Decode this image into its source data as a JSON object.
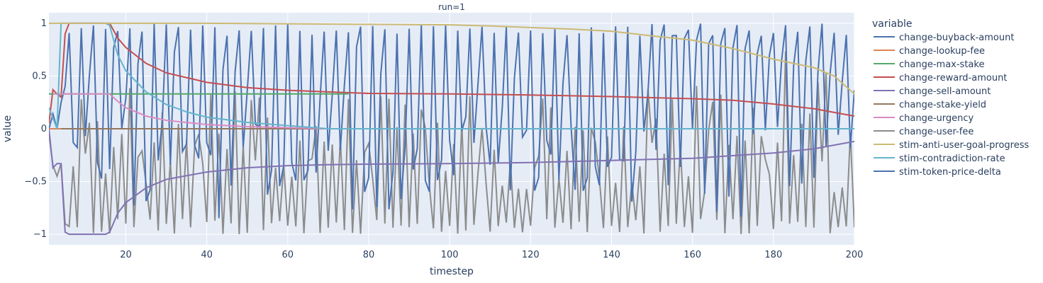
{
  "chart_data": {
    "type": "line",
    "title": "run=1",
    "xlabel": "timestep",
    "ylabel": "value",
    "xlim": [
      1,
      200
    ],
    "ylim": [
      -1.1,
      1.1
    ],
    "x_ticks": [
      20,
      40,
      60,
      80,
      100,
      120,
      140,
      160,
      180,
      200
    ],
    "y_ticks": [
      1,
      0.5,
      0,
      -0.5,
      -1
    ],
    "y_tick_labels": [
      "1",
      "0.5",
      "0",
      "−0.5",
      "−1"
    ],
    "grid": true,
    "legend_title": "variable",
    "legend_position": "right",
    "series": [
      {
        "name": "change-buyback-amount",
        "color": "#4c72b0",
        "points": [
          [
            1,
            0
          ],
          [
            2,
            1
          ],
          [
            3,
            0
          ],
          [
            4,
            0
          ],
          [
            5,
            1
          ],
          [
            6,
            1
          ],
          [
            10,
            1
          ],
          [
            15,
            1
          ],
          [
            20,
            1
          ],
          [
            30,
            1
          ],
          [
            40,
            1
          ],
          [
            50,
            1
          ],
          [
            60,
            1
          ],
          [
            80,
            1
          ],
          [
            100,
            1
          ],
          [
            120,
            1
          ],
          [
            140,
            1
          ],
          [
            160,
            1
          ],
          [
            180,
            1
          ],
          [
            200,
            1
          ]
        ],
        "hidden": true
      },
      {
        "name": "change-lookup-fee",
        "color": "#dd8452",
        "points": [
          [
            1,
            0
          ],
          [
            200,
            0
          ]
        ]
      },
      {
        "name": "change-max-stake",
        "color": "#55a868",
        "points": [
          [
            1,
            0.33
          ],
          [
            200,
            0.33
          ]
        ],
        "end": 75
      },
      {
        "name": "change-reward-amount",
        "color": "#c44e52",
        "points": [
          [
            1,
            0.05
          ],
          [
            2,
            0.37
          ],
          [
            3,
            0.33
          ],
          [
            4,
            0.3
          ],
          [
            5,
            0.9
          ],
          [
            6,
            1
          ],
          [
            15,
            1
          ],
          [
            16,
            1
          ],
          [
            18,
            0.86
          ],
          [
            20,
            0.77
          ],
          [
            25,
            0.62
          ],
          [
            30,
            0.53
          ],
          [
            40,
            0.44
          ],
          [
            50,
            0.39
          ],
          [
            60,
            0.365
          ],
          [
            70,
            0.35
          ],
          [
            80,
            0.335
          ],
          [
            100,
            0.33
          ],
          [
            120,
            0.32
          ],
          [
            140,
            0.305
          ],
          [
            160,
            0.285
          ],
          [
            170,
            0.27
          ],
          [
            180,
            0.235
          ],
          [
            190,
            0.19
          ],
          [
            200,
            0.12
          ]
        ]
      },
      {
        "name": "change-sell-amount",
        "color": "#8172b3",
        "points": [
          [
            1,
            0
          ],
          [
            2,
            -0.37
          ],
          [
            3,
            -0.33
          ],
          [
            4,
            -0.33
          ],
          [
            5,
            -0.98
          ],
          [
            6,
            -1
          ],
          [
            15,
            -1
          ],
          [
            16,
            -0.98
          ],
          [
            18,
            -0.8
          ],
          [
            20,
            -0.7
          ],
          [
            25,
            -0.56
          ],
          [
            30,
            -0.48
          ],
          [
            40,
            -0.41
          ],
          [
            50,
            -0.37
          ],
          [
            60,
            -0.35
          ],
          [
            70,
            -0.34
          ],
          [
            80,
            -0.335
          ],
          [
            100,
            -0.33
          ],
          [
            120,
            -0.32
          ],
          [
            140,
            -0.3
          ],
          [
            160,
            -0.28
          ],
          [
            180,
            -0.23
          ],
          [
            190,
            -0.19
          ],
          [
            200,
            -0.12
          ]
        ]
      },
      {
        "name": "change-stake-yield",
        "color": "#937860",
        "points": [
          [
            4,
            0
          ],
          [
            70,
            0
          ]
        ]
      },
      {
        "name": "change-urgency",
        "color": "#da8bc3",
        "points": [
          [
            2,
            0.33
          ],
          [
            16,
            0.33
          ],
          [
            18,
            0.26
          ],
          [
            20,
            0.2
          ],
          [
            25,
            0.12
          ],
          [
            30,
            0.08
          ],
          [
            40,
            0.04
          ],
          [
            50,
            0.02
          ],
          [
            60,
            0.01
          ],
          [
            70,
            0
          ]
        ]
      },
      {
        "name": "change-user-fee",
        "color": "#8c8c8c",
        "noisy": "gray"
      },
      {
        "name": "stim-anti-user-goal-progress",
        "color": "#ccb974",
        "points": [
          [
            1,
            1
          ],
          [
            20,
            1
          ],
          [
            40,
            1
          ],
          [
            60,
            0.995
          ],
          [
            80,
            0.99
          ],
          [
            100,
            0.985
          ],
          [
            110,
            0.975
          ],
          [
            120,
            0.96
          ],
          [
            130,
            0.945
          ],
          [
            140,
            0.925
          ],
          [
            150,
            0.88
          ],
          [
            160,
            0.84
          ],
          [
            170,
            0.76
          ],
          [
            180,
            0.66
          ],
          [
            190,
            0.58
          ],
          [
            195,
            0.5
          ],
          [
            200,
            0.33
          ]
        ]
      },
      {
        "name": "stim-contradiction-rate",
        "color": "#64b5cd",
        "points": [
          [
            1,
            0.2
          ],
          [
            3,
            0
          ],
          [
            4,
            1
          ],
          [
            15,
            1
          ],
          [
            16,
            0.98
          ],
          [
            18,
            0.7
          ],
          [
            20,
            0.55
          ],
          [
            25,
            0.35
          ],
          [
            30,
            0.23
          ],
          [
            35,
            0.16
          ],
          [
            40,
            0.11
          ],
          [
            50,
            0.06
          ],
          [
            60,
            0.03
          ],
          [
            70,
            0
          ],
          [
            200,
            0
          ]
        ]
      },
      {
        "name": "stim-token-price-delta",
        "color": "#4c72b0",
        "noisy": "blue",
        "trend": [
          [
            150,
            0.86
          ],
          [
            160,
            0.84
          ],
          [
            170,
            0.76
          ],
          [
            180,
            0.68
          ],
          [
            190,
            0.6
          ],
          [
            200,
            0.36
          ]
        ]
      }
    ]
  }
}
